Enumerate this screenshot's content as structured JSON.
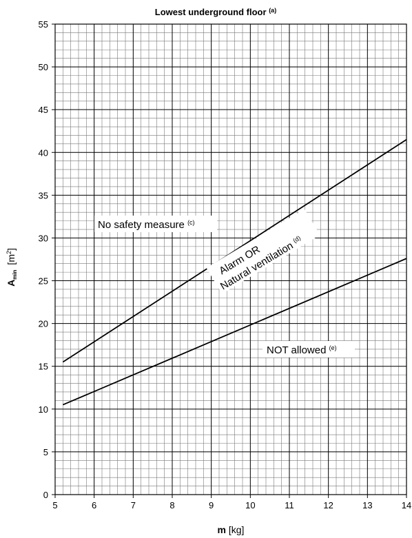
{
  "chart_data": {
    "type": "line",
    "title": "Lowest underground floor",
    "title_note": "(a)",
    "xlabel": {
      "main": "m",
      "unit": "[kg]"
    },
    "ylabel": {
      "main": "A",
      "sub": "min",
      "unit": "[m",
      "unit_sup": "2",
      "unit_end": "]"
    },
    "xlim": [
      5,
      14
    ],
    "ylim": [
      0,
      55
    ],
    "x_ticks": [
      "5",
      "6",
      "7",
      "8",
      "9",
      "10",
      "11",
      "12",
      "13",
      "14"
    ],
    "y_ticks": [
      "0",
      "5",
      "10",
      "15",
      "20",
      "25",
      "30",
      "35",
      "40",
      "45",
      "50",
      "55"
    ],
    "grid": true,
    "series": [
      {
        "x": [
          5.2,
          14
        ],
        "y": [
          15.5,
          41.5
        ]
      },
      {
        "x": [
          5.2,
          14
        ],
        "y": [
          10.5,
          27.6
        ]
      }
    ],
    "annotations": [
      {
        "text": "No safety measure",
        "note": "(c)"
      },
      {
        "text": "Alarm OR"
      },
      {
        "text": "Natural ventilation",
        "note": "(d)"
      },
      {
        "text": "NOT allowed",
        "note": "(e)"
      }
    ]
  }
}
